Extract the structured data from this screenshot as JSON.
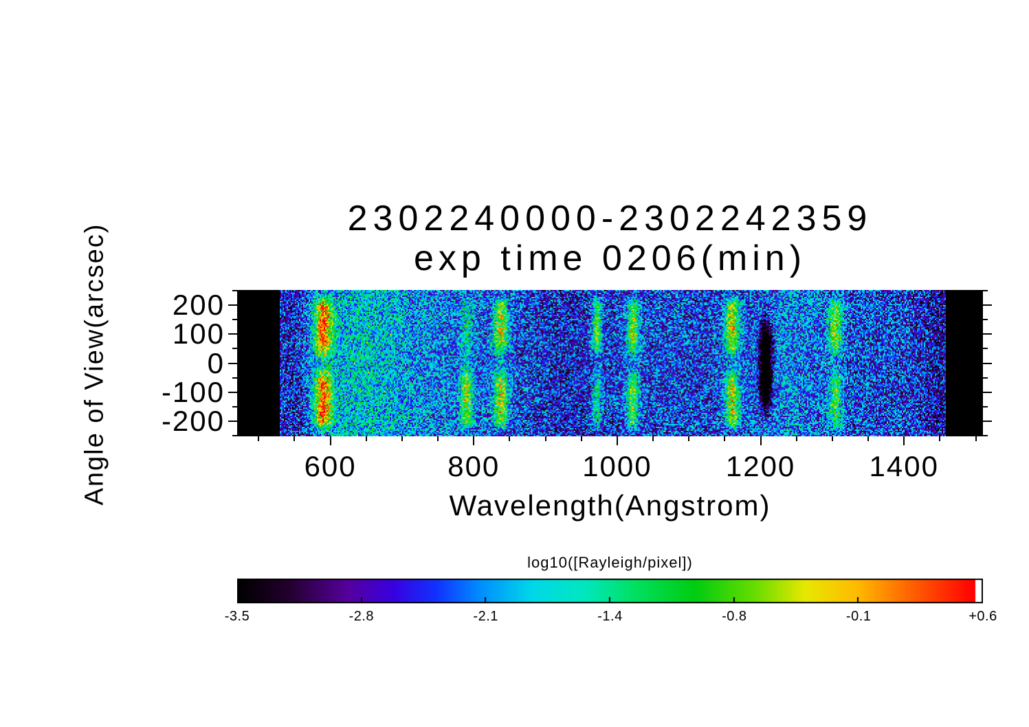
{
  "chart_data": {
    "type": "heatmap",
    "title": "2302240000-2302242359",
    "subtitle": "exp time 0206(min)",
    "xlabel": "Wavelength(Angstrom)",
    "ylabel": "Angle of View(arcsec)",
    "xlim": [
      470,
      1510
    ],
    "ylim": [
      -253,
      253
    ],
    "x_ticks": [
      "600",
      "800",
      "1000",
      "1200",
      "1400"
    ],
    "x_minor_step": 50,
    "y_ticks": [
      "200",
      "100",
      "0",
      "-100",
      "-200"
    ],
    "y_minor_step": 50,
    "data_range": {
      "lambda_min": 530,
      "lambda_max": 1458
    },
    "background": {
      "mean": -2.45,
      "noise_half_range": 0.85
    },
    "emission_bands": [
      {
        "wavelength": 590,
        "sigma": 9,
        "amplitude": 1.95,
        "upper": 1.0,
        "lower": 1.0,
        "center_gap": 0.75,
        "note": "brightest band, yellow-orange core"
      },
      {
        "wavelength": 790,
        "sigma": 6,
        "amplitude": 1.35,
        "upper": 0.45,
        "lower": 1.0,
        "center_gap": 0.55
      },
      {
        "wavelength": 838,
        "sigma": 7,
        "amplitude": 1.5,
        "upper": 1.0,
        "lower": 1.0,
        "center_gap": 0.8
      },
      {
        "wavelength": 972,
        "sigma": 5,
        "amplitude": 1.35,
        "upper": 1.0,
        "lower": 0.7,
        "center_gap": 0.85
      },
      {
        "wavelength": 1022,
        "sigma": 6,
        "amplitude": 1.45,
        "upper": 1.0,
        "lower": 0.9,
        "center_gap": 0.85
      },
      {
        "wavelength": 1160,
        "sigma": 7,
        "amplitude": 1.7,
        "upper": 1.0,
        "lower": 0.95,
        "center_gap": 0.8
      },
      {
        "wavelength": 1305,
        "sigma": 7,
        "amplitude": 1.4,
        "upper": 1.0,
        "lower": 0.75,
        "center_gap": 0.8
      }
    ],
    "absorption_band": {
      "wavelength": 1207,
      "sigma": 6,
      "depth": 2.6,
      "half_height": 150,
      "note": "dark vertical lane"
    },
    "diffuse_glows": [
      {
        "wavelength": 548,
        "sigma": 15,
        "amplitude": -0.3
      },
      {
        "wavelength": 640,
        "sigma": 45,
        "amplitude": 0.5
      },
      {
        "wavelength": 715,
        "sigma": 90,
        "amplitude": 0.28
      },
      {
        "wavelength": 925,
        "sigma": 35,
        "amplitude": -0.22
      },
      {
        "wavelength": 1240,
        "sigma": 35,
        "amplitude": 0.3
      },
      {
        "wavelength": 1450,
        "sigma": 20,
        "amplitude": -0.35
      }
    ],
    "colorbar": {
      "label": "log10([Rayleigh/pixel])",
      "ticks": [
        "-3.5",
        "-2.8",
        "-2.1",
        "-1.4",
        "-0.8",
        "-0.1",
        "+0.6"
      ],
      "vmin": -3.5,
      "vmax": 0.6,
      "colormap_stops": [
        [
          0.0,
          "#000000"
        ],
        [
          0.07,
          "#24002e"
        ],
        [
          0.15,
          "#56009e"
        ],
        [
          0.21,
          "#3a00e0"
        ],
        [
          0.27,
          "#1133ff"
        ],
        [
          0.33,
          "#0090ff"
        ],
        [
          0.4,
          "#00d8e8"
        ],
        [
          0.47,
          "#00e8c0"
        ],
        [
          0.54,
          "#00e060"
        ],
        [
          0.62,
          "#00cc11"
        ],
        [
          0.7,
          "#66dd00"
        ],
        [
          0.77,
          "#e8e800"
        ],
        [
          0.84,
          "#ffbb00"
        ],
        [
          0.91,
          "#ff6600"
        ],
        [
          1.0,
          "#ff0000"
        ]
      ]
    }
  }
}
